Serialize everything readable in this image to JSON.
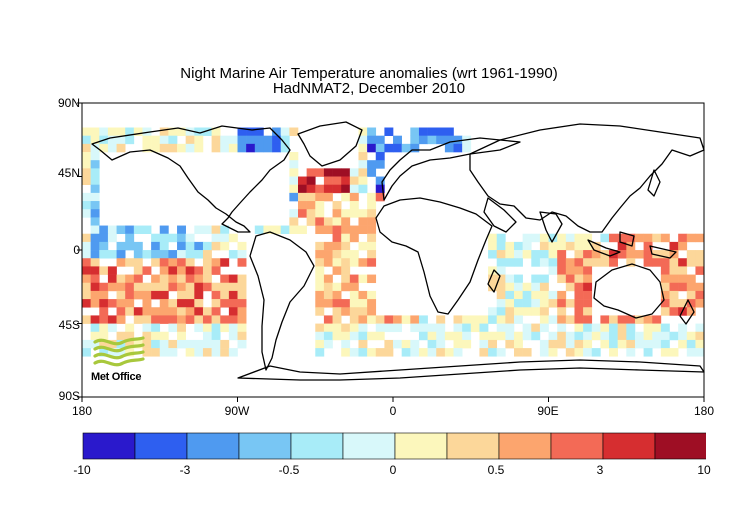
{
  "title_line1": "Night Marine Air Temperature anomalies (wrt 1961-1990)",
  "title_line2": "HadNMAT2, December 2010",
  "logo_text": "Met Office",
  "lat_labels": [
    "90N",
    "45N",
    "0",
    "45S",
    "90S"
  ],
  "lon_labels": [
    "180",
    "90W",
    "0",
    "90E",
    "180"
  ],
  "colorbar": {
    "tick_labels": [
      "-10",
      "-3",
      "-0.5",
      "0",
      "0.5",
      "3",
      "10"
    ],
    "colors": [
      "#2a19cc",
      "#2e5ff0",
      "#4f9af0",
      "#78c6f4",
      "#a8ecf8",
      "#d8f8fa",
      "#fcf7bc",
      "#fcd79a",
      "#fca56e",
      "#f36a56",
      "#d62e30",
      "#9e0e24"
    ]
  },
  "accent_colors": {
    "land": "#ffffff",
    "ocean_missing": "#ffffff",
    "coast": "#000000"
  }
}
